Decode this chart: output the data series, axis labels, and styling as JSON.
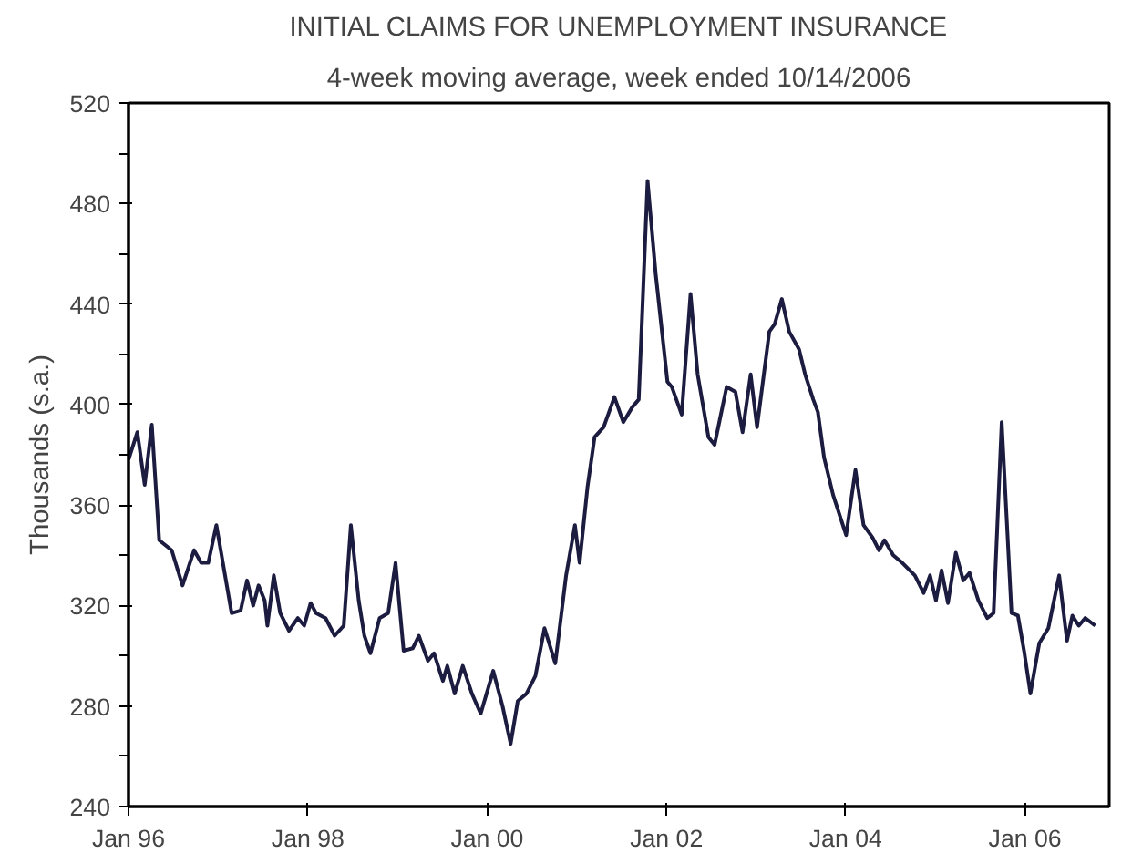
{
  "chart_data": {
    "type": "line",
    "title": "INITIAL CLAIMS FOR UNEMPLOYMENT INSURANCE",
    "subtitle": "4-week moving average, week ended 10/14/2006",
    "ylabel": "Thousands (s.a.)",
    "x": [
      "1996-01-01",
      "1996-02-06",
      "1996-03-07",
      "1996-04-05",
      "1996-05-05",
      "1996-06-25",
      "1996-08-08",
      "1996-09-24",
      "1996-10-23",
      "1996-11-21",
      "1996-12-24",
      "1997-02-24",
      "1997-04-02",
      "1997-04-28",
      "1997-05-23",
      "1997-06-14",
      "1997-07-09",
      "1997-07-20",
      "1997-08-15",
      "1997-09-10",
      "1997-10-16",
      "1997-11-21",
      "1997-12-17",
      "1998-01-12",
      "1998-02-03",
      "1998-03-14",
      "1998-04-20",
      "1998-05-27",
      "1998-06-25",
      "1998-07-27",
      "1998-08-19",
      "1998-09-13",
      "1998-10-20",
      "1998-11-24",
      "1998-12-24",
      "1999-01-26",
      "1999-03-04",
      "1999-03-29",
      "1999-05-05",
      "1999-05-30",
      "1999-07-05",
      "1999-07-23",
      "1999-08-22",
      "1999-09-24",
      "1999-10-31",
      "1999-12-06",
      "2000-01-26",
      "2000-03-04",
      "2000-04-06",
      "2000-05-05",
      "2000-06-10",
      "2000-07-16",
      "2000-08-22",
      "2000-10-05",
      "2000-11-18",
      "2000-12-24",
      "2001-01-12",
      "2001-02-13",
      "2001-03-14",
      "2001-04-20",
      "2001-06-03",
      "2001-07-09",
      "2001-08-15",
      "2001-09-10",
      "2001-10-16",
      "2001-11-18",
      "2002-01-05",
      "2002-01-23",
      "2002-03-04",
      "2002-04-09",
      "2002-05-08",
      "2002-06-21",
      "2002-07-16",
      "2002-09-03",
      "2002-10-09",
      "2002-11-07",
      "2002-12-10",
      "2003-01-05",
      "2003-02-24",
      "2003-03-18",
      "2003-04-16",
      "2003-05-16",
      "2003-06-25",
      "2003-07-20",
      "2003-08-22",
      "2003-09-10",
      "2003-10-05",
      "2003-11-11",
      "2004-01-03",
      "2004-02-10",
      "2004-03-14",
      "2004-04-20",
      "2004-05-16",
      "2004-06-07",
      "2004-07-13",
      "2004-08-19",
      "2004-10-09",
      "2004-11-14",
      "2004-12-10",
      "2005-01-03",
      "2005-01-26",
      "2005-02-21",
      "2005-03-25",
      "2005-04-24",
      "2005-05-20",
      "2005-06-25",
      "2005-07-31",
      "2005-08-26",
      "2005-09-28",
      "2005-11-07",
      "2005-12-03",
      "2005-12-28",
      "2006-01-23",
      "2006-02-28",
      "2006-04-06",
      "2006-05-20",
      "2006-06-21",
      "2006-07-13",
      "2006-08-08",
      "2006-09-03",
      "2006-10-14"
    ],
    "series": [
      {
        "color": "#1c1c40",
        "values": [
          378,
          389,
          368,
          392,
          346,
          342,
          328,
          342,
          337,
          337,
          352,
          317,
          318,
          330,
          320,
          328,
          322,
          312,
          332,
          317,
          310,
          315,
          312,
          321,
          317,
          315,
          308,
          312,
          352,
          322,
          308,
          301,
          315,
          317,
          337,
          302,
          303,
          308,
          298,
          301,
          290,
          296,
          285,
          296,
          285,
          277,
          294,
          280,
          265,
          282,
          285,
          292,
          311,
          297,
          332,
          352,
          337,
          367,
          387,
          391,
          403,
          393,
          399,
          402,
          489,
          452,
          409,
          407,
          396,
          444,
          412,
          387,
          384,
          407,
          405,
          389,
          412,
          391,
          429,
          432,
          442,
          429,
          422,
          412,
          402,
          397,
          379,
          364,
          348,
          374,
          352,
          347,
          342,
          346,
          340,
          337,
          332,
          325,
          332,
          322,
          334,
          321,
          341,
          330,
          333,
          322,
          315,
          317,
          393,
          317,
          316,
          302,
          285,
          305,
          311,
          332,
          306,
          316,
          312,
          315,
          312
        ]
      }
    ],
    "xlim": [
      "1996-01-01",
      "2006-12-10"
    ],
    "xticks": [
      {
        "value": "1996-01-01",
        "label": "Jan 96"
      },
      {
        "value": "1998-01-01",
        "label": "Jan 98"
      },
      {
        "value": "2000-01-01",
        "label": "Jan 00"
      },
      {
        "value": "2002-01-01",
        "label": "Jan 02"
      },
      {
        "value": "2004-01-01",
        "label": "Jan 04"
      },
      {
        "value": "2006-01-01",
        "label": "Jan 06"
      }
    ],
    "ylim": [
      240,
      520
    ],
    "yticks": [
      240,
      {
        "value": 260,
        "label": null
      },
      280,
      {
        "value": 300,
        "label": null
      },
      320,
      {
        "value": 340,
        "label": null
      },
      360,
      {
        "value": 380,
        "label": null
      },
      400,
      {
        "value": 420,
        "label": null
      },
      440,
      {
        "value": 460,
        "label": null
      },
      480,
      {
        "value": 500,
        "label": null
      },
      520
    ],
    "grid": false,
    "marker": "none",
    "line_style": "solid"
  }
}
